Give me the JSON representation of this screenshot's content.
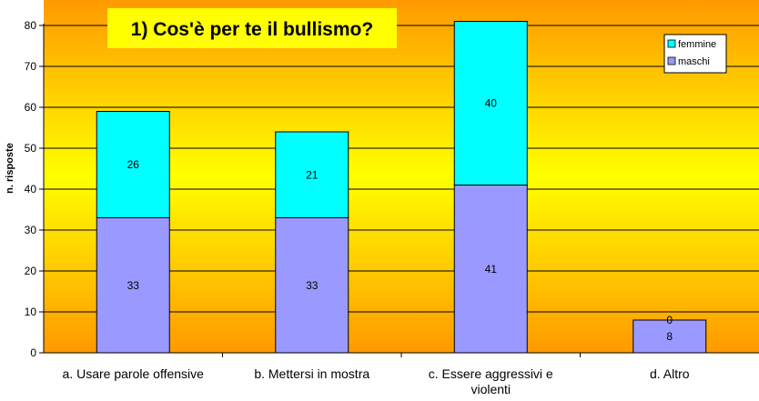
{
  "chart_data": {
    "type": "bar",
    "stacked": true,
    "title": "1) Cos'è per te il bullismo?",
    "ylabel": "n. risposte",
    "xlabel": "",
    "ylim": [
      0,
      80
    ],
    "yticks": [
      0,
      10,
      20,
      30,
      40,
      50,
      60,
      70,
      80
    ],
    "grid": true,
    "legend_position": "top-right",
    "categories": [
      [
        "a. Usare parole offensive"
      ],
      [
        "b. Mettersi in mostra"
      ],
      [
        "c. Essere aggressivi e",
        "violenti"
      ],
      [
        "d. Altro"
      ]
    ],
    "series": [
      {
        "name": "maschi",
        "values": [
          33,
          33,
          41,
          8
        ],
        "color": "#9999ff"
      },
      {
        "name": "femmine",
        "values": [
          26,
          21,
          40,
          0
        ],
        "color": "#00ffff"
      }
    ],
    "colors": {
      "background_top": "#ffff00",
      "background_bottom": "#ff9900",
      "title_box": "#ffff00",
      "gridline": "#000000"
    }
  }
}
